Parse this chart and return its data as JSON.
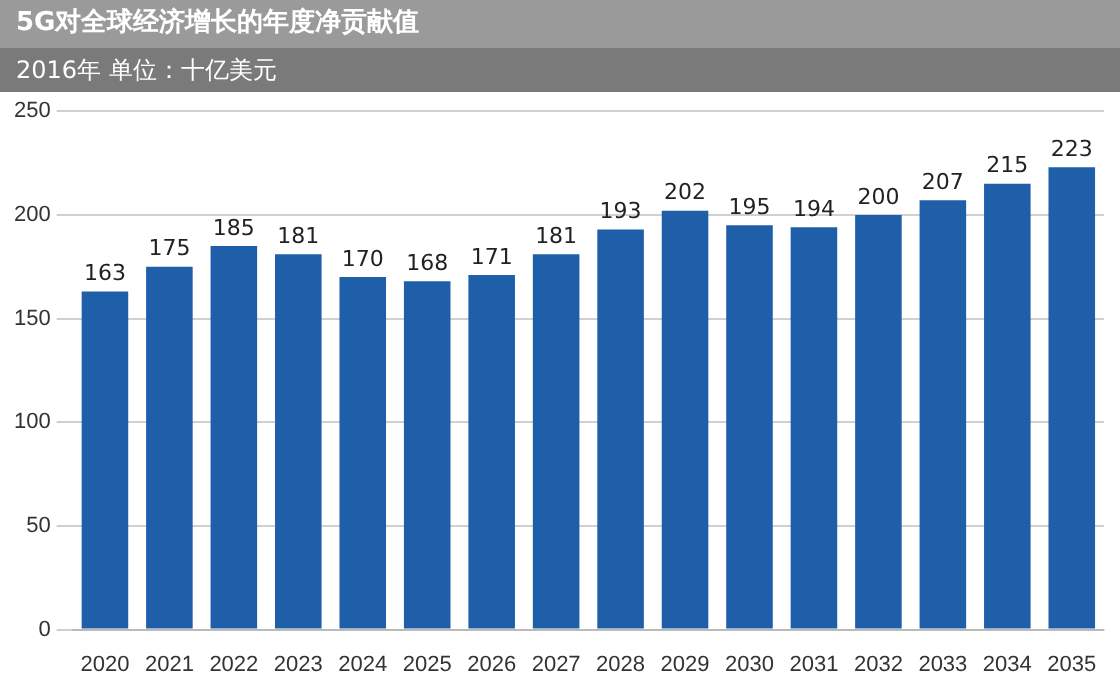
{
  "chart_data": {
    "type": "bar",
    "title": "5G对全球经济增长的年度净贡献值",
    "subtitle": "2016年   单位：十亿美元",
    "categories": [
      "2020",
      "2021",
      "2022",
      "2023",
      "2024",
      "2025",
      "2026",
      "2027",
      "2028",
      "2029",
      "2030",
      "2031",
      "2032",
      "2033",
      "2034",
      "2035"
    ],
    "values": [
      163,
      175,
      185,
      181,
      170,
      168,
      171,
      181,
      193,
      202,
      195,
      194,
      200,
      207,
      215,
      223
    ],
    "color": "#1f5fa9",
    "ylim": [
      0,
      250
    ],
    "yticks": [
      0,
      50,
      100,
      150,
      200,
      250
    ],
    "grid": "y",
    "data_labels": true,
    "legend": false
  }
}
